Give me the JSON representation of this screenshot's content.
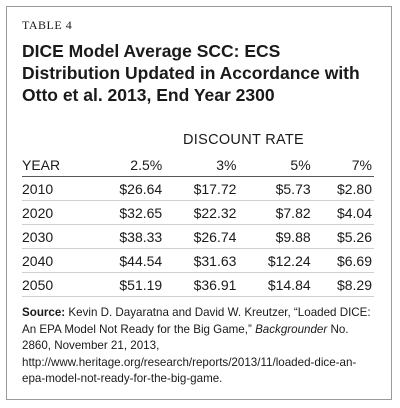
{
  "table_label": "TABLE 4",
  "title": "DICE Model Average SCC: ECS Distribution Updated in Accordance with Otto et al. 2013, End Year 2300",
  "group_header": "DISCOUNT RATE",
  "columns": [
    "YEAR",
    "2.5%",
    "3%",
    "5%",
    "7%"
  ],
  "rows": [
    [
      "2010",
      "$26.64",
      "$17.72",
      "$5.73",
      "$2.80"
    ],
    [
      "2020",
      "$32.65",
      "$22.32",
      "$7.82",
      "$4.04"
    ],
    [
      "2030",
      "$38.33",
      "$26.74",
      "$9.88",
      "$5.26"
    ],
    [
      "2040",
      "$44.54",
      "$31.63",
      "$12.24",
      "$6.69"
    ],
    [
      "2050",
      "$51.19",
      "$36.91",
      "$14.84",
      "$8.29"
    ]
  ],
  "source": {
    "label": "Source:",
    "text_before": " Kevin D. Dayaratna and David W. Kreutzer, “Loaded DICE: An EPA Model Not Ready for the Big Game,” ",
    "publication": "Backgrounder",
    "text_after": " No. 2860, November 21, 2013, http://www.heritage.org/research/reports/2013/11/loaded-dice-an-epa-model-not-ready-for-the-big-game."
  }
}
